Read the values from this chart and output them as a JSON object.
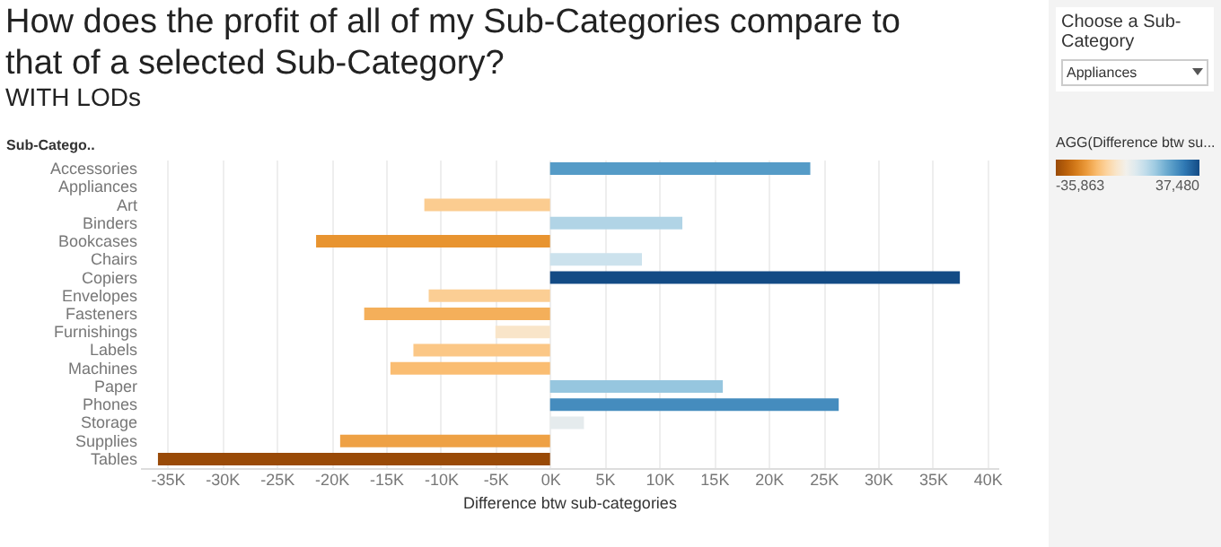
{
  "chart_data": {
    "type": "bar",
    "orientation": "horizontal",
    "title": "How does the profit of all of my Sub-Categories compare to that of a selected Sub-Category?",
    "subtitle": "WITH LODs",
    "ylabel": "Sub-Catego..",
    "xlabel": "Difference btw sub-categories",
    "categories": [
      "Accessories",
      "Appliances",
      "Art",
      "Binders",
      "Bookcases",
      "Chairs",
      "Copiers",
      "Envelopes",
      "Fasteners",
      "Furnishings",
      "Labels",
      "Machines",
      "Paper",
      "Phones",
      "Storage",
      "Supplies",
      "Tables"
    ],
    "values": [
      23800,
      null,
      -11500,
      12100,
      -21400,
      8400,
      37480,
      -11100,
      -17000,
      -5000,
      -12500,
      -14600,
      15800,
      26400,
      3100,
      -19200,
      -35863
    ],
    "xlim": [
      -37500,
      41000
    ],
    "xticks": [
      {
        "value": -35000,
        "label": "-35K"
      },
      {
        "value": -30000,
        "label": "-30K"
      },
      {
        "value": -25000,
        "label": "-25K"
      },
      {
        "value": -20000,
        "label": "-20K"
      },
      {
        "value": -15000,
        "label": "-15K"
      },
      {
        "value": -10000,
        "label": "-10K"
      },
      {
        "value": -5000,
        "label": "-5K"
      },
      {
        "value": 0,
        "label": "0K"
      },
      {
        "value": 5000,
        "label": "5K"
      },
      {
        "value": 10000,
        "label": "10K"
      },
      {
        "value": 15000,
        "label": "15K"
      },
      {
        "value": 20000,
        "label": "20K"
      },
      {
        "value": 25000,
        "label": "25K"
      },
      {
        "value": 30000,
        "label": "30K"
      },
      {
        "value": 35000,
        "label": "35K"
      },
      {
        "value": 40000,
        "label": "40K"
      }
    ],
    "clabel": "AGG(Difference btw su...",
    "clim": [
      -35863,
      37480
    ],
    "cticks": [
      {
        "value": -35863,
        "label": "-35,863"
      },
      {
        "value": 37480,
        "label": "37,480"
      }
    ],
    "annotations": [
      "Choose a Sub-Category",
      "Appliances"
    ],
    "grid": "x"
  }
}
